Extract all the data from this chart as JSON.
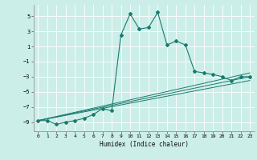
{
  "xlabel": "Humidex (Indice chaleur)",
  "ylabel": "",
  "bg_color": "#cceee8",
  "grid_color": "#ffffff",
  "line_color": "#1a7a6e",
  "xlim": [
    -0.5,
    23.5
  ],
  "ylim": [
    -10.2,
    6.5
  ],
  "yticks": [
    5,
    3,
    1,
    -1,
    -3,
    -5,
    -7,
    -9
  ],
  "xticks": [
    0,
    1,
    2,
    3,
    4,
    5,
    6,
    7,
    8,
    9,
    10,
    11,
    12,
    13,
    14,
    15,
    16,
    17,
    18,
    19,
    20,
    21,
    22,
    23
  ],
  "series": [
    {
      "x": [
        0,
        1,
        2,
        3,
        4,
        5,
        6,
        7,
        8,
        9,
        10,
        11,
        12,
        13,
        14,
        15,
        16,
        17,
        18,
        19,
        20,
        21,
        22,
        23
      ],
      "y": [
        -8.8,
        -8.8,
        -9.3,
        -9.0,
        -8.8,
        -8.5,
        -8.0,
        -7.2,
        -7.5,
        2.5,
        5.3,
        3.3,
        3.5,
        5.5,
        1.2,
        1.7,
        1.2,
        -2.3,
        -2.5,
        -2.7,
        -3.0,
        -3.5,
        -3.0,
        -3.0
      ]
    },
    {
      "x": [
        0,
        23
      ],
      "y": [
        -8.8,
        -3.0
      ]
    },
    {
      "x": [
        0,
        23
      ],
      "y": [
        -8.8,
        -2.5
      ]
    },
    {
      "x": [
        0,
        23
      ],
      "y": [
        -8.8,
        -3.5
      ]
    }
  ]
}
